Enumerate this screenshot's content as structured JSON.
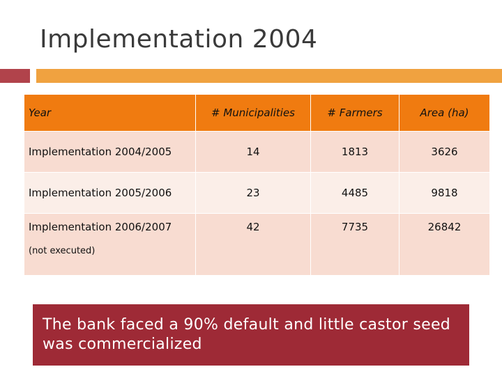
{
  "slide": {
    "title": "Implementation 2004",
    "colors": {
      "accent_left": "#b1434b",
      "accent_right": "#f0a240",
      "header": "#f07b10",
      "row_dark": "#f8dcd1",
      "row_light": "#fbeee8",
      "callout": "#9e2a36"
    }
  },
  "table": {
    "headers": [
      "Year",
      "# Municipalities",
      "# Farmers",
      "Area (ha)"
    ],
    "rows": [
      {
        "label": "Implementation 2004/2005",
        "municipalities": "14",
        "farmers": "1813",
        "area": "3626"
      },
      {
        "label": "Implementation 2005/2006",
        "municipalities": "23",
        "farmers": "4485",
        "area": "9818"
      },
      {
        "label": "Implementation 2006/2007",
        "note": "(not executed)",
        "municipalities": "42",
        "farmers": "7735",
        "area": "26842"
      }
    ]
  },
  "callout": {
    "text": "The bank faced a 90% default and little castor seed was commercialized"
  }
}
